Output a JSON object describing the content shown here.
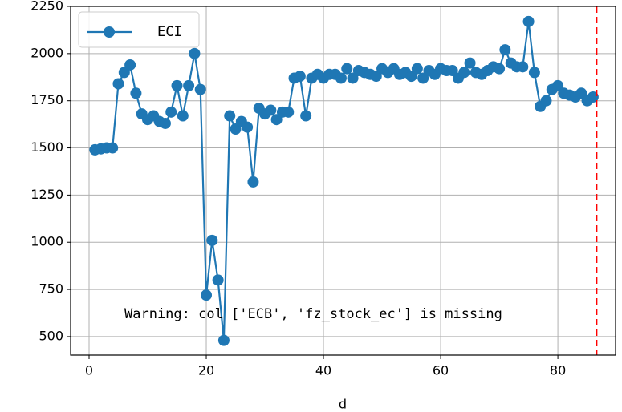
{
  "chart_data": {
    "type": "line",
    "xlabel": "d",
    "x": [
      1,
      2,
      3,
      4,
      5,
      6,
      7,
      8,
      9,
      10,
      11,
      12,
      13,
      14,
      15,
      16,
      17,
      18,
      19,
      20,
      21,
      22,
      23,
      24,
      25,
      26,
      27,
      28,
      29,
      30,
      31,
      32,
      33,
      34,
      35,
      36,
      37,
      38,
      39,
      40,
      41,
      42,
      43,
      44,
      45,
      46,
      47,
      48,
      49,
      50,
      51,
      52,
      53,
      54,
      55,
      56,
      57,
      58,
      59,
      60,
      61,
      62,
      63,
      64,
      65,
      66,
      67,
      68,
      69,
      70,
      71,
      72,
      73,
      74,
      75,
      76,
      77,
      78,
      79,
      80,
      81,
      82,
      83,
      84,
      85,
      86
    ],
    "series": [
      {
        "name": "ECI",
        "color": "#1f77b4",
        "values": [
          1490,
          1495,
          1500,
          1500,
          1840,
          1900,
          1940,
          1790,
          1680,
          1650,
          1670,
          1640,
          1630,
          1690,
          1830,
          1670,
          1830,
          2000,
          1810,
          720,
          1010,
          800,
          480,
          1670,
          1600,
          1640,
          1610,
          1320,
          1710,
          1680,
          1700,
          1650,
          1690,
          1690,
          1870,
          1880,
          1670,
          1870,
          1890,
          1870,
          1890,
          1890,
          1870,
          1920,
          1870,
          1910,
          1900,
          1890,
          1880,
          1920,
          1900,
          1920,
          1890,
          1900,
          1880,
          1920,
          1870,
          1910,
          1890,
          1920,
          1910,
          1910,
          1870,
          1900,
          1950,
          1900,
          1890,
          1910,
          1930,
          1920,
          2020,
          1950,
          1930,
          1930,
          2170,
          1900,
          1720,
          1750,
          1810,
          1830,
          1790,
          1780,
          1770,
          1790,
          1750,
          1770
        ]
      }
    ],
    "vline": {
      "x": 86.6,
      "color": "#ff0000"
    },
    "annotation": "Warning: col ['ECB', 'fz_stock_ec'] is missing",
    "xlim": [
      -3.15,
      89.85
    ],
    "xticks": [
      0,
      20,
      40,
      60,
      80
    ],
    "ylim": [
      402,
      2250
    ],
    "yticks": [
      500,
      750,
      1000,
      1250,
      1500,
      1750,
      2000,
      2250
    ],
    "grid": true,
    "legend": "upper left"
  }
}
